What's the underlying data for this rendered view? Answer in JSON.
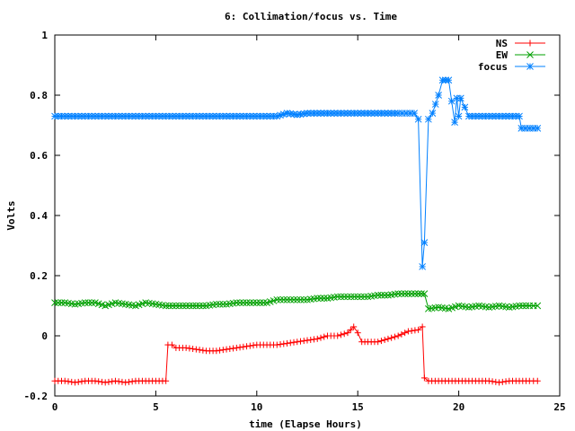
{
  "chart_data": {
    "type": "line",
    "title": "6: Collimation/focus vs. Time",
    "xlabel": "time (Elapse Hours)",
    "ylabel": "Volts",
    "xlim": [
      0,
      25
    ],
    "ylim": [
      -0.2,
      1
    ],
    "xticks": [
      0,
      5,
      10,
      15,
      20,
      25
    ],
    "xtick_labels": [
      "0",
      "5",
      "10",
      "15",
      "20",
      "25"
    ],
    "yticks": [
      -0.2,
      0,
      0.2,
      0.4,
      0.6,
      0.8,
      1
    ],
    "ytick_labels": [
      "-0.2",
      "0",
      "0.2",
      "0.4",
      "0.6",
      "0.8",
      "1"
    ],
    "grid": false,
    "legend_position": "top-right",
    "series": [
      {
        "name": "NS",
        "color": "#ff0000",
        "marker": "plus",
        "x": [
          0,
          0.5,
          1,
          1.5,
          2,
          2.5,
          3,
          3.5,
          4,
          4.5,
          5,
          5.5,
          5.6,
          5.8,
          6,
          6.5,
          7,
          7.5,
          8,
          8.5,
          9,
          9.5,
          10,
          10.5,
          11,
          11.5,
          12,
          12.5,
          13,
          13.5,
          14,
          14.5,
          14.8,
          15,
          15.2,
          15.5,
          16,
          16.5,
          17,
          17.5,
          18,
          18.2,
          18.3,
          18.5,
          19,
          19.5,
          20,
          20.5,
          21,
          21.5,
          22,
          22.5,
          23,
          23.5,
          23.9
        ],
        "y": [
          -0.15,
          -0.15,
          -0.155,
          -0.15,
          -0.15,
          -0.155,
          -0.15,
          -0.155,
          -0.15,
          -0.15,
          -0.15,
          -0.15,
          -0.03,
          -0.03,
          -0.04,
          -0.04,
          -0.045,
          -0.05,
          -0.05,
          -0.045,
          -0.04,
          -0.035,
          -0.03,
          -0.03,
          -0.03,
          -0.025,
          -0.02,
          -0.015,
          -0.01,
          0.0,
          0.0,
          0.01,
          0.03,
          0.01,
          -0.02,
          -0.02,
          -0.02,
          -0.01,
          0.0,
          0.015,
          0.02,
          0.03,
          -0.14,
          -0.15,
          -0.15,
          -0.15,
          -0.15,
          -0.15,
          -0.15,
          -0.15,
          -0.155,
          -0.15,
          -0.15,
          -0.15,
          -0.15
        ]
      },
      {
        "name": "EW",
        "color": "#00a000",
        "marker": "cross",
        "x": [
          0,
          0.5,
          1,
          1.5,
          2,
          2.5,
          3,
          3.5,
          4,
          4.5,
          5,
          5.5,
          6,
          6.5,
          7,
          7.5,
          8,
          8.5,
          9,
          9.5,
          10,
          10.5,
          11,
          11.5,
          12,
          12.5,
          13,
          13.5,
          14,
          14.5,
          15,
          15.5,
          16,
          16.5,
          17,
          17.5,
          18,
          18.3,
          18.5,
          19,
          19.5,
          20,
          20.5,
          21,
          21.5,
          22,
          22.5,
          23,
          23.5,
          23.9
        ],
        "y": [
          0.11,
          0.11,
          0.105,
          0.11,
          0.11,
          0.1,
          0.11,
          0.105,
          0.1,
          0.11,
          0.105,
          0.1,
          0.1,
          0.1,
          0.1,
          0.1,
          0.105,
          0.105,
          0.11,
          0.11,
          0.11,
          0.11,
          0.12,
          0.12,
          0.12,
          0.12,
          0.125,
          0.125,
          0.13,
          0.13,
          0.13,
          0.13,
          0.135,
          0.135,
          0.14,
          0.14,
          0.14,
          0.14,
          0.09,
          0.095,
          0.09,
          0.1,
          0.095,
          0.1,
          0.095,
          0.1,
          0.095,
          0.1,
          0.1,
          0.1
        ]
      },
      {
        "name": "focus",
        "color": "#0080ff",
        "marker": "star",
        "x": [
          0,
          1,
          2,
          3,
          4,
          5,
          6,
          7,
          8,
          9,
          10,
          11,
          11.5,
          12,
          12.5,
          13,
          14,
          15,
          16,
          17,
          17.8,
          18,
          18.2,
          18.3,
          18.5,
          18.7,
          19,
          19.2,
          19.5,
          19.8,
          19.9,
          20,
          20.1,
          20.5,
          21,
          22,
          23,
          23.1,
          23.5,
          23.9
        ],
        "y": [
          0.73,
          0.73,
          0.73,
          0.73,
          0.73,
          0.73,
          0.73,
          0.73,
          0.73,
          0.73,
          0.73,
          0.73,
          0.74,
          0.735,
          0.74,
          0.74,
          0.74,
          0.74,
          0.74,
          0.74,
          0.74,
          0.72,
          0.23,
          0.31,
          0.72,
          0.74,
          0.8,
          0.85,
          0.85,
          0.71,
          0.79,
          0.73,
          0.79,
          0.73,
          0.73,
          0.73,
          0.73,
          0.69,
          0.69,
          0.69
        ]
      }
    ]
  }
}
